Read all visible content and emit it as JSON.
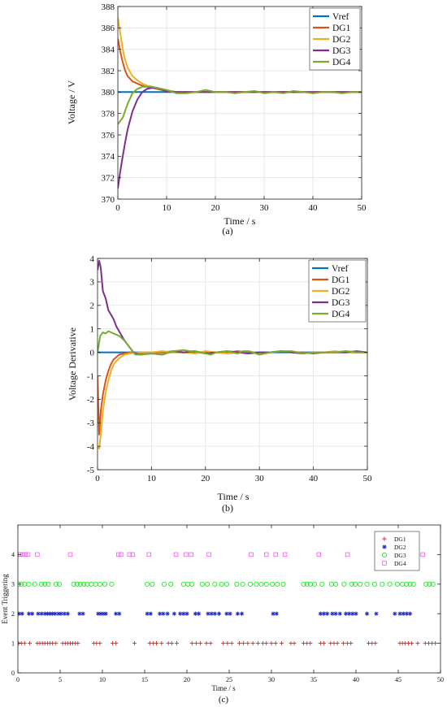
{
  "chart_data": [
    {
      "type": "line",
      "panel_label": "(a)",
      "xlabel": "Time / s",
      "ylabel": "Voltage / V",
      "xlim": [
        0,
        50
      ],
      "ylim": [
        370,
        388
      ],
      "xticks": [
        0,
        10,
        20,
        30,
        40,
        50
      ],
      "yticks": [
        370,
        372,
        374,
        376,
        378,
        380,
        382,
        384,
        386,
        388
      ],
      "grid": true,
      "legend_position": "top-right",
      "series": [
        {
          "name": "Vref",
          "color": "#0072BD",
          "x": [
            0,
            50
          ],
          "y": [
            380,
            380
          ]
        },
        {
          "name": "DG1",
          "color": "#D95319",
          "x": [
            0,
            0.5,
            1,
            1.5,
            2,
            3,
            4,
            5,
            6,
            8,
            10,
            12,
            15,
            20,
            30,
            40,
            50
          ],
          "y": [
            385,
            383.8,
            382.8,
            382,
            381.5,
            381,
            380.8,
            380.6,
            380.5,
            380.3,
            380.1,
            380.0,
            380.0,
            380.0,
            380.0,
            380.0,
            380.0
          ]
        },
        {
          "name": "DG2",
          "color": "#EDB120",
          "x": [
            0,
            0.5,
            1,
            1.5,
            2,
            3,
            4,
            5,
            6,
            8,
            10,
            12,
            15,
            20,
            30,
            40,
            50
          ],
          "y": [
            387,
            385.5,
            384,
            383,
            382.3,
            381.5,
            381.1,
            380.8,
            380.6,
            380.4,
            380.2,
            380.0,
            380.0,
            380.0,
            380.0,
            380.0,
            380.0
          ]
        },
        {
          "name": "DG3",
          "color": "#7E2F8E",
          "x": [
            0,
            0.5,
            1,
            1.5,
            2,
            3,
            4,
            5,
            6,
            7,
            8,
            10,
            12,
            15,
            20,
            30,
            40,
            50
          ],
          "y": [
            371,
            372.6,
            374.0,
            375.3,
            376.5,
            378.2,
            379.3,
            380.0,
            380.3,
            380.4,
            380.4,
            380.1,
            380.0,
            380.0,
            380.0,
            380.0,
            380.0,
            380.0
          ]
        },
        {
          "name": "DG4",
          "color": "#77AC30",
          "x": [
            0,
            1,
            2,
            3,
            4,
            5,
            6,
            7,
            8,
            10,
            12,
            14,
            16,
            18,
            20,
            22,
            24,
            26,
            28,
            30,
            32,
            34,
            36,
            38,
            40,
            42,
            44,
            46,
            48,
            50
          ],
          "y": [
            377,
            377.6,
            378.9,
            379.9,
            380.3,
            380.5,
            380.5,
            380.5,
            380.4,
            380.2,
            379.9,
            379.9,
            380.0,
            380.2,
            380.0,
            380.0,
            379.9,
            380.0,
            380.1,
            379.9,
            380.0,
            379.9,
            380.1,
            380.0,
            379.9,
            380.0,
            380.0,
            379.9,
            380.0,
            380.0
          ]
        }
      ]
    },
    {
      "type": "line",
      "panel_label": "(b)",
      "xlabel": "Time / s",
      "ylabel": "Voltage Derivative",
      "xlim": [
        0,
        50
      ],
      "ylim": [
        -5,
        4
      ],
      "xticks": [
        0,
        10,
        20,
        30,
        40,
        50
      ],
      "yticks": [
        -5,
        -4,
        -3,
        -2,
        -1,
        0,
        1,
        2,
        3,
        4
      ],
      "grid": true,
      "legend_position": "top-right",
      "series": [
        {
          "name": "Vref",
          "color": "#0072BD",
          "x": [
            0,
            50
          ],
          "y": [
            0,
            0
          ]
        },
        {
          "name": "DG1",
          "color": "#D95319",
          "x": [
            0,
            0.3,
            0.6,
            1,
            1.5,
            2,
            2.5,
            3,
            4,
            5,
            6,
            8,
            10,
            12,
            14,
            16,
            18,
            20,
            22,
            24,
            26,
            28,
            30,
            32,
            34,
            36,
            38,
            40,
            42,
            44,
            46,
            48,
            50
          ],
          "y": [
            -1,
            -3.5,
            -2.5,
            -1.8,
            -1.2,
            -0.8,
            -0.5,
            -0.3,
            -0.1,
            -0.05,
            0,
            -0.05,
            0,
            0,
            0.05,
            0,
            0.05,
            -0.05,
            0,
            0,
            0.05,
            0,
            -0.05,
            0,
            0.05,
            0,
            0,
            -0.05,
            0,
            0,
            0.05,
            0,
            0
          ]
        },
        {
          "name": "DG2",
          "color": "#EDB120",
          "x": [
            0,
            0.3,
            0.6,
            1,
            1.5,
            2,
            2.5,
            3,
            4,
            5,
            6,
            8,
            10,
            12,
            14,
            16,
            18,
            20,
            22,
            24,
            26,
            28,
            30,
            32,
            34,
            36,
            38,
            40,
            42,
            44,
            46,
            48,
            50
          ],
          "y": [
            -4,
            -4.1,
            -3.5,
            -2.5,
            -1.7,
            -1.2,
            -0.8,
            -0.5,
            -0.25,
            -0.1,
            -0.05,
            0,
            0,
            0.05,
            0,
            0,
            -0.05,
            0.05,
            0,
            -0.05,
            0,
            0.05,
            -0.05,
            0,
            0.05,
            0,
            -0.05,
            0,
            0,
            0.05,
            0,
            0,
            0
          ]
        },
        {
          "name": "DG3",
          "color": "#7E2F8E",
          "x": [
            0,
            0.3,
            0.6,
            1,
            1.5,
            2,
            2.5,
            3,
            3.5,
            4,
            5,
            6,
            6.5,
            7,
            8,
            10,
            12,
            14,
            16,
            18,
            20,
            22,
            24,
            26,
            28,
            30,
            32,
            34,
            36,
            38,
            40,
            42,
            44,
            46,
            48,
            50
          ],
          "y": [
            3.5,
            3.9,
            3.6,
            2.6,
            2.3,
            1.8,
            1.6,
            1.4,
            1.1,
            0.9,
            0.5,
            0.2,
            0.05,
            -0.05,
            -0.1,
            -0.05,
            -0.1,
            0.05,
            0,
            0.05,
            -0.05,
            0,
            0.05,
            0,
            -0.05,
            0,
            0,
            0.05,
            0,
            -0.05,
            0,
            0,
            0,
            0,
            0.05,
            0
          ]
        },
        {
          "name": "DG4",
          "color": "#77AC30",
          "x": [
            0,
            0.5,
            1,
            1.5,
            2,
            2.5,
            3,
            4,
            5,
            6,
            7,
            8,
            10,
            12,
            14,
            16,
            17,
            18,
            20,
            21,
            22,
            24,
            26,
            27,
            28,
            30,
            32,
            34,
            36,
            38,
            40,
            42,
            44,
            46,
            48,
            50
          ],
          "y": [
            0,
            0.7,
            0.85,
            0.8,
            0.9,
            0.85,
            0.8,
            0.7,
            0.5,
            0.2,
            -0.1,
            -0.1,
            -0.05,
            -0.1,
            0.05,
            0.1,
            0.05,
            0.05,
            -0.05,
            -0.1,
            0,
            0.05,
            -0.05,
            0.05,
            0.05,
            -0.1,
            0,
            0.05,
            0.05,
            -0.05,
            0,
            0,
            0,
            0.05,
            0,
            0
          ]
        }
      ]
    },
    {
      "type": "scatter",
      "panel_label": "(c)",
      "xlabel": "Time / s",
      "ylabel": "Event Triggering",
      "xlim": [
        0,
        50
      ],
      "ylim": [
        0,
        5
      ],
      "xticks": [
        0,
        5,
        10,
        15,
        20,
        25,
        30,
        35,
        40,
        45,
        50
      ],
      "yticks": [
        0,
        1,
        2,
        3,
        4
      ],
      "grid": false,
      "legend_position": "top-right",
      "series": [
        {
          "name": "DG1",
          "color": "#E8231D",
          "marker": "plus",
          "y_level": 1,
          "x": [
            0.1,
            0.4,
            0.8,
            1.4,
            2.3,
            2.6,
            2.9,
            3.2,
            3.5,
            3.8,
            4.1,
            4.5,
            5.3,
            5.6,
            5.9,
            6.2,
            6.5,
            6.8,
            7.1,
            9.0,
            9.3,
            9.7,
            11.2,
            11.6,
            13.8,
            15.6,
            16.0,
            16.4,
            17.0,
            17.8,
            18.2,
            18.8,
            20.6,
            21.1,
            21.6,
            22.3,
            22.8,
            24.3,
            24.8,
            25.3,
            26.2,
            26.7,
            27.2,
            27.8,
            28.4,
            29.0,
            29.4,
            30.0,
            30.5,
            31.2,
            32.3,
            32.7,
            33.8,
            34.2,
            34.6,
            35.8,
            36.2,
            37.0,
            37.4,
            37.8,
            38.5,
            39.0,
            39.4,
            41.5,
            41.9,
            42.3,
            45.2,
            45.5,
            45.8,
            46.2,
            46.6,
            47.3,
            48.2,
            48.6,
            49.0,
            49.4
          ]
        },
        {
          "name": "DG2",
          "color": "#1F2CC6",
          "marker": "asterisk",
          "y_level": 2,
          "x": [
            0.1,
            0.5,
            1.3,
            1.7,
            2.4,
            2.8,
            3.2,
            3.5,
            3.8,
            4.1,
            4.4,
            4.8,
            5.1,
            5.5,
            5.9,
            7.3,
            7.7,
            9.5,
            9.8,
            10.1,
            10.4,
            11.6,
            12.0,
            15.3,
            15.7,
            16.8,
            17.2,
            17.7,
            18.5,
            19.2,
            19.6,
            20.0,
            21.0,
            21.4,
            22.5,
            22.9,
            23.3,
            23.8,
            24.7,
            25.1,
            26.0,
            26.5,
            30.2,
            30.6,
            35.8,
            36.2,
            36.6,
            37.2,
            37.6,
            38.1,
            38.8,
            39.2,
            39.6,
            40.0,
            41.3,
            42.4,
            44.6,
            45.2,
            45.6,
            46.0,
            46.4
          ]
        },
        {
          "name": "DG3",
          "color": "#1FE823",
          "marker": "circle",
          "y_level": 3,
          "x": [
            0.1,
            0.4,
            0.8,
            1.3,
            2.0,
            2.8,
            3.2,
            3.6,
            4.5,
            4.9,
            6.6,
            7.0,
            7.4,
            7.8,
            8.2,
            8.7,
            9.2,
            9.7,
            10.3,
            11.1,
            15.3,
            15.9,
            17.3,
            18.1,
            19.6,
            20.1,
            20.6,
            21.8,
            22.4,
            23.3,
            24.1,
            24.7,
            25.9,
            26.6,
            27.5,
            28.2,
            28.8,
            29.4,
            30.1,
            30.7,
            31.4,
            33.8,
            34.2,
            34.6,
            35.1,
            36.0,
            37.1,
            37.6,
            38.6,
            39.5,
            39.9,
            40.5,
            41.3,
            42.2,
            43.1,
            44.0,
            44.9,
            45.5,
            46.0,
            46.4,
            46.8,
            48.3,
            48.7,
            49.1
          ]
        },
        {
          "name": "DG4",
          "color": "#E85FE8",
          "marker": "square",
          "y_level": 4,
          "x": [
            0.1,
            0.3,
            0.6,
            0.9,
            1.2,
            2.3,
            6.2,
            11.9,
            12.2,
            13.2,
            13.6,
            15.5,
            18.7,
            19.9,
            20.5,
            22.6,
            27.6,
            29.4,
            30.5,
            31.6,
            35.6,
            39.0,
            47.9
          ]
        }
      ]
    }
  ]
}
